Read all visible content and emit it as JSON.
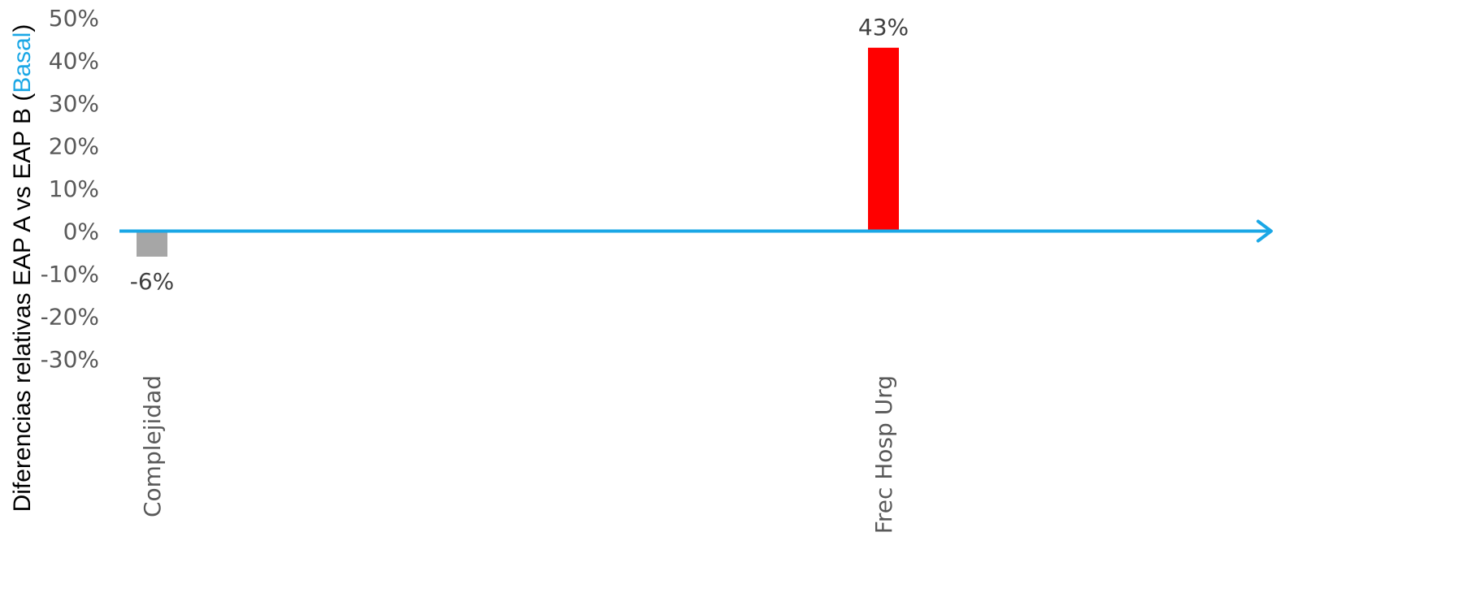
{
  "chart_data": {
    "type": "bar",
    "categories": [
      "Complejidad",
      "Frec Hosp Urg"
    ],
    "values": [
      -6,
      43
    ],
    "value_labels": [
      "-6%",
      "43%"
    ],
    "bar_colors": [
      "#A6A6A6",
      "#FF0000"
    ],
    "ylabel": {
      "parts": [
        "Diferencias relativas EAP A vs EAP B (",
        "Basal",
        ")"
      ],
      "highlight_color": "#1AA7E6"
    },
    "ylim": [
      -30,
      50
    ],
    "yticks": [
      50,
      40,
      30,
      20,
      10,
      0,
      -10,
      -20,
      -30
    ],
    "ytick_labels": [
      "50%",
      "40%",
      "30%",
      "20%",
      "10%",
      "0%",
      "-10%",
      "-20%",
      "-30%"
    ],
    "zero_axis_color": "#1AA7E6",
    "grid": false
  }
}
